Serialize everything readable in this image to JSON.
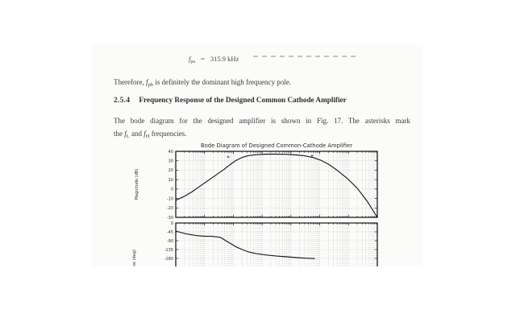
{
  "document": {
    "equation": {
      "variable": "f",
      "subscript": "pa",
      "relation": "=",
      "value": "315.9 kHz"
    },
    "para_therefore": {
      "pre": "Therefore, ",
      "variable": "f",
      "subscript": "pb",
      "post": " is definitely the dominant high frequency pole."
    },
    "heading": {
      "number": "2.5.4",
      "title": "Frequency Response of the Designed Common Cathode Amplifier"
    },
    "para_bode": {
      "line1": "The bode diagram for the designed amplifier is shown in Fig. 17. The asterisks mark",
      "line2_pre": "the ",
      "line2_var1": "f",
      "line2_sub1": "L",
      "line2_mid": " and ",
      "line2_var2": "f",
      "line2_sub2": "H",
      "line2_post": " frequencies."
    }
  },
  "figure_colors": {
    "curve": "#1a1a1a",
    "grid": "#9a9a9a",
    "box": "#1c1c1c",
    "label": "#333333"
  },
  "chart_data": [
    {
      "type": "line",
      "title": "Bode Diagram of Designed Common-Cathode Amplifier",
      "name": "magnitude-subplot",
      "ylabel": "Magnitude (dB)",
      "ylim": [
        -30,
        40
      ],
      "yticks": [
        40,
        30,
        20,
        10,
        0,
        -10,
        -20,
        -30
      ],
      "xscale": "log",
      "x_axis": {
        "decades": 7,
        "tick_labels_visible": false
      },
      "grid": true,
      "series": [
        {
          "name": "gain",
          "x_frac": [
            0,
            0.04,
            0.08,
            0.12,
            0.16,
            0.2,
            0.24,
            0.27,
            0.3,
            0.33,
            0.36,
            0.4,
            0.45,
            0.5,
            0.55,
            0.6,
            0.64,
            0.68,
            0.72,
            0.76,
            0.8,
            0.85,
            0.9,
            0.95,
            1.0
          ],
          "y_db": [
            -12,
            -8,
            -3,
            3,
            9,
            15,
            21,
            26,
            30.5,
            33.5,
            35.5,
            36.5,
            37,
            37,
            36.8,
            36.2,
            35.2,
            33.5,
            30.5,
            26,
            20,
            11.5,
            1,
            -13,
            -30
          ]
        }
      ],
      "markers": {
        "symbol": "*",
        "points_frac_db": [
          [
            0.26,
            33.5
          ],
          [
            0.676,
            34.5
          ]
        ]
      }
    },
    {
      "type": "line",
      "name": "phase-subplot",
      "ylabel": "Phase (deg)",
      "yticks": [
        0,
        -45,
        -90,
        -135,
        -180
      ],
      "xscale": "log",
      "x_axis": {
        "decades": 7,
        "tick_labels_visible": false
      },
      "grid": true,
      "clipped_at_bottom": true,
      "series": [
        {
          "name": "phase",
          "x_frac": [
            0,
            0.05,
            0.1,
            0.14,
            0.18,
            0.22,
            0.26,
            0.3,
            0.33,
            0.36,
            0.4,
            0.45,
            0.5,
            0.55,
            0.6,
            0.65,
            0.69
          ],
          "y_deg": [
            -41,
            -55,
            -64,
            -67,
            -68,
            -73,
            -97,
            -122,
            -135,
            -147,
            -156,
            -163,
            -168,
            -172,
            -176,
            -179,
            -181
          ]
        }
      ]
    }
  ]
}
